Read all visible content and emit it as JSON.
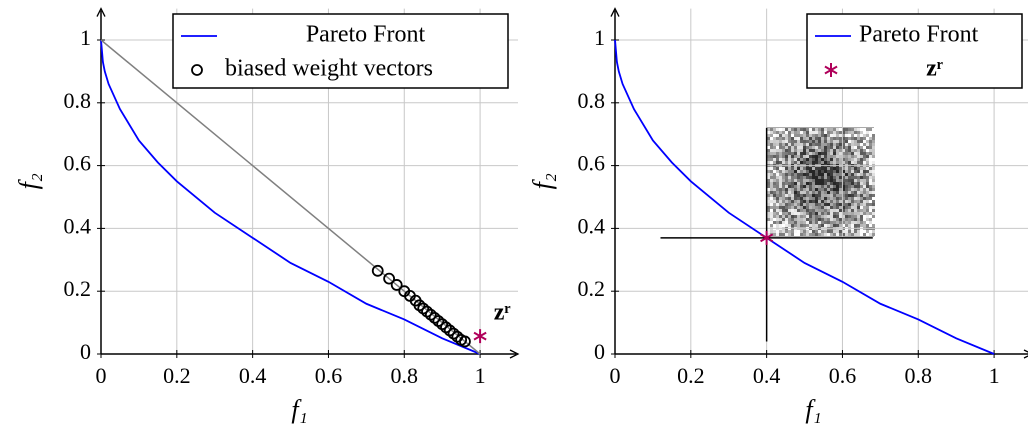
{
  "chart_data": [
    {
      "type": "line",
      "xlim": [
        0,
        1.1
      ],
      "ylim": [
        0,
        1.1
      ],
      "xticks": [
        0,
        0.2,
        0.4,
        0.6,
        0.8,
        1
      ],
      "yticks": [
        0,
        0.2,
        0.4,
        0.6,
        0.8,
        1
      ],
      "xlabel": "f₁",
      "ylabel": "f₂",
      "grid": true,
      "legend": "upper right",
      "series": [
        {
          "name": "Pareto Front",
          "color": "#0000ff",
          "mark": "line",
          "x": [
            0,
            0.005,
            0.01,
            0.02,
            0.05,
            0.1,
            0.15,
            0.2,
            0.3,
            0.4,
            0.5,
            0.6,
            0.7,
            0.8,
            0.9,
            1
          ],
          "values": [
            1,
            0.93,
            0.9,
            0.86,
            0.78,
            0.68,
            0.61,
            0.55,
            0.45,
            0.37,
            0.29,
            0.23,
            0.16,
            0.11,
            0.05,
            0
          ]
        },
        {
          "color": "#808080",
          "mark": "line",
          "x": [
            0,
            1
          ],
          "values": [
            1,
            0
          ]
        },
        {
          "name": "biased weight vectors",
          "color": "#000000",
          "mark": "circle",
          "x": [
            0.73,
            0.76,
            0.78,
            0.8,
            0.815,
            0.83,
            0.84,
            0.85,
            0.86,
            0.87,
            0.88,
            0.89,
            0.9,
            0.91,
            0.92,
            0.93,
            0.94,
            0.95,
            0.96
          ],
          "values": [
            0.265,
            0.24,
            0.22,
            0.2,
            0.185,
            0.17,
            0.155,
            0.145,
            0.135,
            0.125,
            0.115,
            0.105,
            0.095,
            0.085,
            0.075,
            0.065,
            0.055,
            0.045,
            0.04
          ]
        },
        {
          "color": "#b0005a",
          "mark": "star",
          "x": [
            1
          ],
          "values": [
            0.057
          ]
        }
      ],
      "annotations": [
        "zʳ"
      ]
    },
    {
      "type": "line",
      "xlim": [
        0,
        1.1
      ],
      "ylim": [
        0,
        1.1
      ],
      "xticks": [
        0,
        0.2,
        0.4,
        0.6,
        0.8,
        1
      ],
      "yticks": [
        0,
        0.2,
        0.4,
        0.6,
        0.8,
        1
      ],
      "xlabel": "f₁",
      "ylabel": "f₂",
      "grid": true,
      "legend": "upper right",
      "series": [
        {
          "name": "Pareto Front",
          "color": "#0000ff",
          "mark": "line",
          "x": [
            0,
            0.005,
            0.01,
            0.02,
            0.05,
            0.1,
            0.15,
            0.2,
            0.3,
            0.4,
            0.5,
            0.6,
            0.7,
            0.8,
            0.9,
            1
          ],
          "values": [
            1,
            0.93,
            0.9,
            0.86,
            0.78,
            0.68,
            0.61,
            0.55,
            0.45,
            0.37,
            0.29,
            0.23,
            0.16,
            0.11,
            0.05,
            0
          ]
        },
        {
          "color": "#000000",
          "mark": "line",
          "x": [
            0.12,
            0.68
          ],
          "values": [
            0.37,
            0.37
          ]
        },
        {
          "color": "#000000",
          "mark": "line",
          "x": [
            0.4,
            0.4
          ],
          "values": [
            0.04,
            0.72
          ]
        },
        {
          "name": "zʳ",
          "color": "#b0005a",
          "mark": "star",
          "x": [
            0.4
          ],
          "values": [
            0.37
          ]
        }
      ]
    }
  ]
}
